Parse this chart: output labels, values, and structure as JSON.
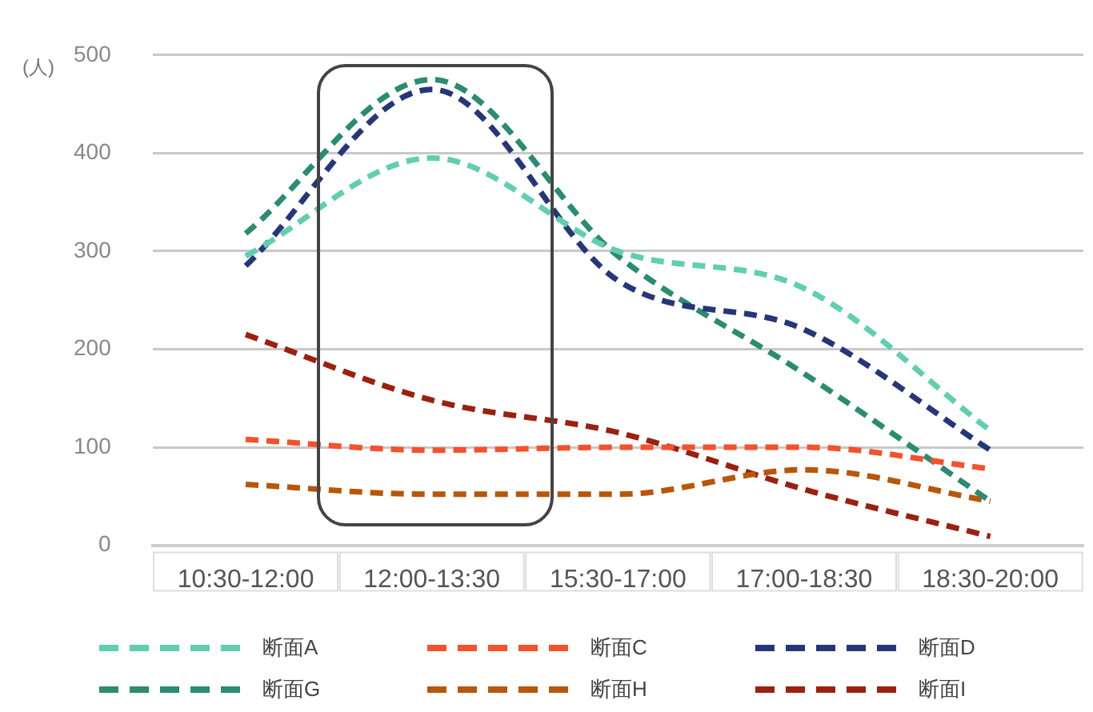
{
  "chart_data": {
    "type": "line",
    "ylabel": "(人)",
    "categories": [
      "10:30-12:00",
      "12:00-13:30",
      "15:30-17:00",
      "17:00-18:30",
      "18:30-20:00"
    ],
    "series": [
      {
        "name": "断面A",
        "color": "#5fcfb0",
        "values": [
          295,
          395,
          300,
          262,
          117
        ]
      },
      {
        "name": "断面C",
        "color": "#f4512c",
        "values": [
          108,
          97,
          100,
          100,
          78
        ]
      },
      {
        "name": "断面D",
        "color": "#27357a",
        "values": [
          285,
          465,
          270,
          220,
          97
        ]
      },
      {
        "name": "断面G",
        "color": "#2a8c70",
        "values": [
          318,
          475,
          295,
          175,
          45
        ]
      },
      {
        "name": "断面H",
        "color": "#b8560a",
        "values": [
          62,
          52,
          52,
          77,
          45
        ]
      },
      {
        "name": "断面I",
        "color": "#9c2010",
        "values": [
          215,
          148,
          115,
          57,
          9
        ]
      }
    ],
    "ylim": [
      0,
      500
    ],
    "yticks": [
      0,
      100,
      200,
      300,
      400,
      500
    ],
    "grid": "y",
    "legend": "bottom",
    "marker": "none",
    "line_style": "dashed"
  }
}
